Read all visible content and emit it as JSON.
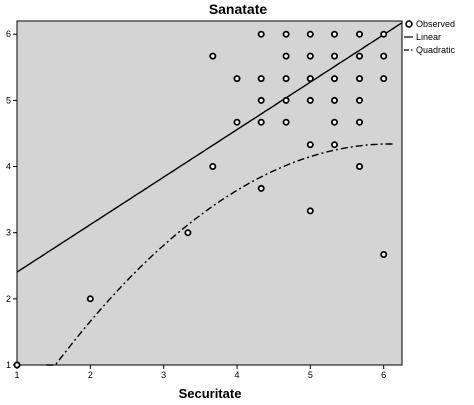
{
  "chart_data": {
    "type": "scatter",
    "title": "Sanatate",
    "xlabel": "Securitate",
    "ylabel": "",
    "xlim": [
      1,
      6.25
    ],
    "ylim": [
      1,
      6.2
    ],
    "xticks": [
      "1",
      "2",
      "3",
      "4",
      "5",
      "6"
    ],
    "yticks": [
      "1",
      "2",
      "3",
      "4",
      "5",
      "6"
    ],
    "grid": false,
    "legend_position": "top-right",
    "colors": {
      "plot_bg": "#d4d4d4",
      "line": "#000000",
      "marker_fill": "#ffffff",
      "marker_stroke": "#000000"
    },
    "series": [
      {
        "name": "Observed",
        "kind": "points",
        "points": [
          [
            1.0,
            1.0
          ],
          [
            2.0,
            2.0
          ],
          [
            3.33,
            3.0
          ],
          [
            3.67,
            4.0
          ],
          [
            3.67,
            5.67
          ],
          [
            4.0,
            5.33
          ],
          [
            4.0,
            4.67
          ],
          [
            4.33,
            6.0
          ],
          [
            4.33,
            5.33
          ],
          [
            4.33,
            5.0
          ],
          [
            4.33,
            4.67
          ],
          [
            4.33,
            3.67
          ],
          [
            4.67,
            6.0
          ],
          [
            4.67,
            5.67
          ],
          [
            4.67,
            5.33
          ],
          [
            4.67,
            5.0
          ],
          [
            4.67,
            4.67
          ],
          [
            5.0,
            6.0
          ],
          [
            5.0,
            5.67
          ],
          [
            5.0,
            5.33
          ],
          [
            5.0,
            5.0
          ],
          [
            5.0,
            4.33
          ],
          [
            5.0,
            3.33
          ],
          [
            5.33,
            6.0
          ],
          [
            5.33,
            5.67
          ],
          [
            5.33,
            5.33
          ],
          [
            5.33,
            5.0
          ],
          [
            5.33,
            4.67
          ],
          [
            5.33,
            4.33
          ],
          [
            5.67,
            6.0
          ],
          [
            5.67,
            5.67
          ],
          [
            5.67,
            5.33
          ],
          [
            5.67,
            5.0
          ],
          [
            5.67,
            4.67
          ],
          [
            5.67,
            4.0
          ],
          [
            6.0,
            6.0
          ],
          [
            6.0,
            5.67
          ],
          [
            6.0,
            5.33
          ],
          [
            6.0,
            2.67
          ]
        ]
      },
      {
        "name": "Linear",
        "kind": "line",
        "dash": "solid",
        "intercept": 1.686,
        "slope": 0.718
      },
      {
        "name": "Quadratic",
        "kind": "line",
        "dash": "dashdot",
        "a": -1.6,
        "b": 1.95,
        "c": -0.16
      }
    ]
  }
}
